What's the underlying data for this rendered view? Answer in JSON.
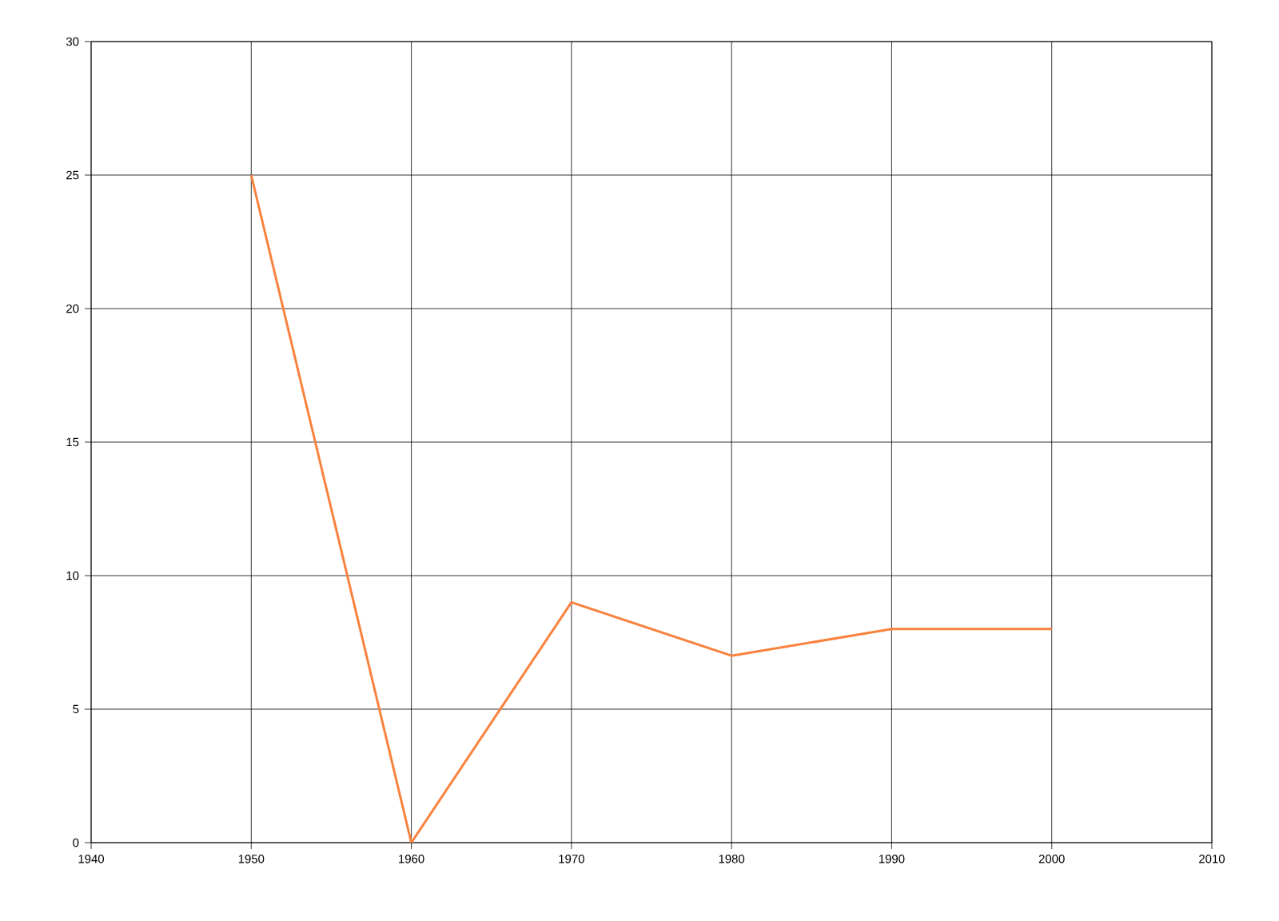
{
  "chart_data": {
    "type": "line",
    "x": [
      1950,
      1960,
      1970,
      1980,
      1990,
      2000
    ],
    "series": [
      {
        "color": "#f9823f",
        "values": [
          25,
          0,
          9,
          7,
          8,
          8
        ]
      }
    ],
    "xlim": [
      1940,
      2010
    ],
    "xticks": [
      1940,
      1950,
      1960,
      1970,
      1980,
      1990,
      2000,
      2010
    ],
    "ylim": [
      0,
      30
    ],
    "yticks": [
      0,
      5,
      10,
      15,
      20,
      25,
      30
    ],
    "grid": true,
    "marker": "none",
    "line_style": "solid"
  }
}
